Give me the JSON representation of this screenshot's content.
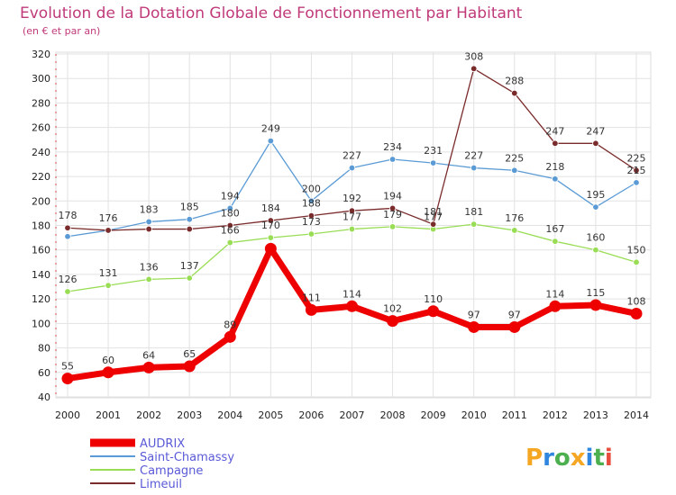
{
  "chart_data": {
    "type": "line",
    "title": "Evolution de la Dotation Globale de Fonctionnement par Habitant",
    "subtitle": "(en € et par an)",
    "x": [
      "2000",
      "2001",
      "2002",
      "2003",
      "2004",
      "2005",
      "2006",
      "2007",
      "2008",
      "2009",
      "2010",
      "2011",
      "2012",
      "2013",
      "2014"
    ],
    "ylim": [
      40,
      320
    ],
    "yticks": [
      40,
      60,
      80,
      100,
      120,
      140,
      160,
      180,
      200,
      220,
      240,
      260,
      280,
      300,
      320
    ],
    "grid": true,
    "legend_position": "bottom-left",
    "series": [
      {
        "name": "AUDRIX",
        "color": "#ee0000",
        "values": [
          55,
          60,
          64,
          65,
          89,
          161,
          111,
          114,
          102,
          110,
          97,
          97,
          114,
          115,
          108
        ]
      },
      {
        "name": "Saint-Chamassy",
        "color": "#5b9bd5",
        "values": [
          171,
          176,
          183,
          185,
          194,
          249,
          200,
          227,
          234,
          231,
          227,
          225,
          218,
          195,
          215
        ]
      },
      {
        "name": "Campagne",
        "color": "#99dd55",
        "values": [
          126,
          131,
          136,
          137,
          166,
          170,
          173,
          177,
          179,
          177,
          181,
          176,
          167,
          160,
          150
        ]
      },
      {
        "name": "Limeuil",
        "color": "#7a2b2b",
        "values": [
          178,
          176,
          177,
          177,
          180,
          184,
          188,
          192,
          194,
          181,
          308,
          288,
          247,
          247,
          225
        ]
      }
    ]
  },
  "labels": {
    "AUDRIX": [
      "55",
      "60",
      "64",
      "65",
      "89",
      "",
      "111",
      "114",
      "102",
      "110",
      "97",
      "97",
      "114",
      "115",
      "108"
    ],
    "Saint-Chamassy": [
      "",
      "",
      "183",
      "185",
      "194",
      "249",
      "200",
      "227",
      "234",
      "231",
      "227",
      "225",
      "218",
      "195",
      "215"
    ],
    "Campagne": [
      "126",
      "131",
      "136",
      "137",
      "166",
      "170",
      "173",
      "177",
      "179",
      "177",
      "181",
      "176",
      "167",
      "160",
      "150"
    ],
    "Limeuil": [
      "178",
      "176",
      "",
      "",
      "180",
      "184",
      "188",
      "192",
      "194",
      "181",
      "308",
      "288",
      "247",
      "247",
      "225"
    ]
  },
  "brand": {
    "text": "Proxiti",
    "letters": [
      "P",
      "r",
      "o",
      "x",
      "i",
      "t",
      "i"
    ],
    "colors": [
      "#f5a623",
      "#2e86de",
      "#4caf50",
      "#f5a623",
      "#2e86de",
      "#4caf50",
      "#e74c3c"
    ]
  }
}
